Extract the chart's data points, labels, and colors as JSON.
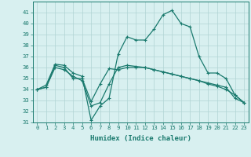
{
  "x": [
    0,
    1,
    2,
    3,
    4,
    5,
    6,
    7,
    8,
    9,
    10,
    11,
    12,
    13,
    14,
    15,
    16,
    17,
    18,
    19,
    20,
    21,
    22,
    23
  ],
  "line1": [
    34.0,
    34.4,
    36.3,
    36.2,
    35.5,
    35.2,
    31.2,
    32.5,
    33.2,
    37.2,
    38.8,
    38.5,
    38.5,
    39.5,
    40.8,
    41.2,
    40.0,
    39.7,
    37.0,
    35.5,
    35.5,
    35.0,
    33.5,
    32.8
  ],
  "line2": [
    34.0,
    34.2,
    36.2,
    36.0,
    35.0,
    35.0,
    32.9,
    34.5,
    35.9,
    35.8,
    36.0,
    36.0,
    36.0,
    35.8,
    35.6,
    35.4,
    35.2,
    35.0,
    34.8,
    34.6,
    34.4,
    34.2,
    33.2,
    32.8
  ],
  "line3": [
    34.0,
    34.2,
    36.0,
    35.8,
    35.2,
    34.8,
    32.5,
    32.8,
    34.5,
    36.0,
    36.2,
    36.1,
    36.0,
    35.8,
    35.6,
    35.4,
    35.2,
    35.0,
    34.8,
    34.5,
    34.3,
    34.0,
    33.5,
    32.8
  ],
  "color": "#1a7a6e",
  "bg_color": "#d8f0f0",
  "grid_color": "#b0d4d4",
  "ylim_min": 31,
  "ylim_max": 42,
  "yticks": [
    31,
    32,
    33,
    34,
    35,
    36,
    37,
    38,
    39,
    40,
    41
  ],
  "xlabel": "Humidex (Indice chaleur)",
  "xlabel_fontsize": 6.5,
  "tick_fontsize": 5.2,
  "linewidth": 0.9,
  "markersize": 2.5
}
